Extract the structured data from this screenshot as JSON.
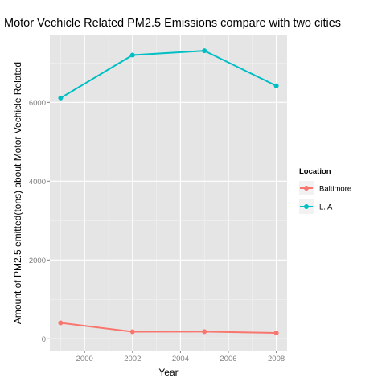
{
  "chart_data": {
    "type": "line",
    "title": "Motor Vechicle Related PM2.5 Emissions compare with two cities",
    "xlabel": "Year",
    "ylabel": "Amount of PM2.5 emitted(tons) about Motor Vechicle Related",
    "x": [
      1999,
      2002,
      2005,
      2008
    ],
    "xlim": [
      1998.55,
      2008.45
    ],
    "ylim": [
      -300,
      7700
    ],
    "xticks": [
      2000,
      2002,
      2004,
      2006,
      2008
    ],
    "yticks": [
      0,
      2000,
      4000,
      6000
    ],
    "grid": true,
    "legend": {
      "title": "Location",
      "position": "right"
    },
    "series": [
      {
        "name": "Baltimore",
        "color": "#F8766D",
        "values": [
          403,
          180,
          182,
          150
        ]
      },
      {
        "name": "L. A",
        "color": "#00BFC4",
        "values": [
          6110,
          7200,
          7310,
          6420
        ]
      }
    ]
  }
}
